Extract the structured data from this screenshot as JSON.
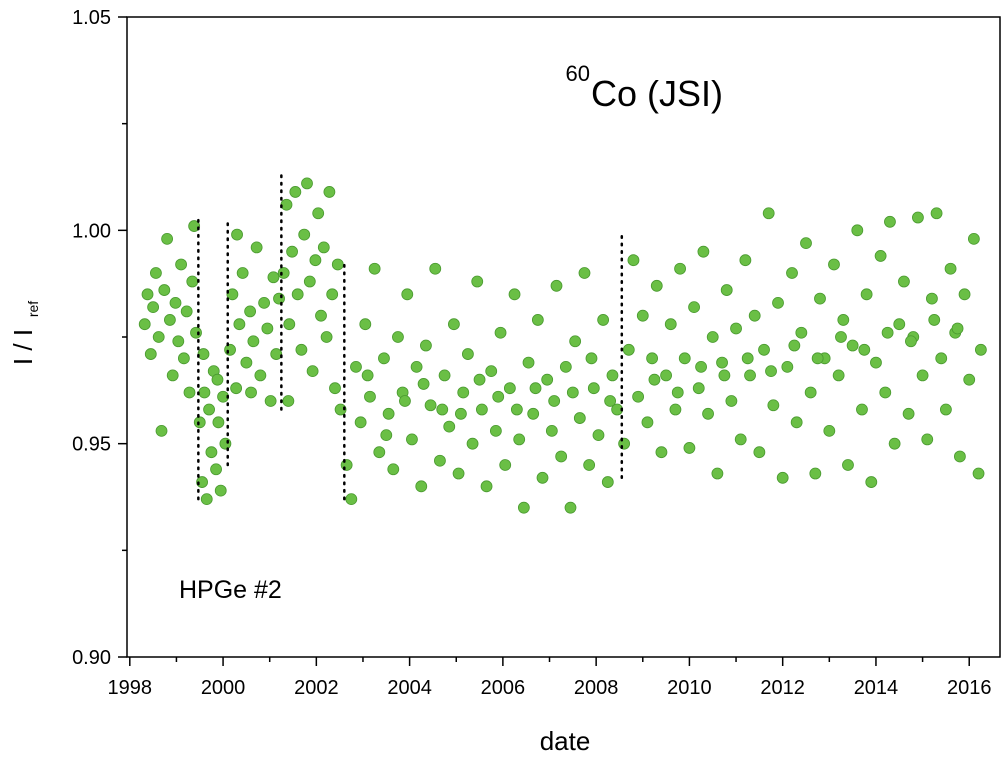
{
  "chart_data": {
    "type": "scatter",
    "title_sup": "60",
    "title": "Co (JSI)",
    "xlabel": "date",
    "ylabel": "I / I",
    "ylabel_sub": "ref",
    "annotation": "HPGe #2",
    "annotation_color": "#857a30",
    "xlim": [
      1997.94,
      2016.66
    ],
    "xticks": [
      1998,
      2000,
      2002,
      2004,
      2006,
      2008,
      2010,
      2012,
      2014,
      2016
    ],
    "xminorticks": [
      1999,
      2001,
      2003,
      2005,
      2007,
      2009,
      2011,
      2013,
      2015
    ],
    "ylim": [
      0.9,
      1.05
    ],
    "yticks": [
      {
        "value": 0.9,
        "label": "0.90"
      },
      0.95,
      {
        "value": 1.0,
        "label": "1.00"
      },
      1.05
    ],
    "yminorticks": [
      0.925,
      0.975,
      1.025
    ],
    "vlines": [
      {
        "x": 1999.47,
        "ylim": [
          0.937,
          1.003
        ]
      },
      {
        "x": 2000.1,
        "ylim": [
          0.945,
          1.003
        ]
      },
      {
        "x": 2001.25,
        "ylim": [
          0.958,
          1.014
        ]
      },
      {
        "x": 2002.6,
        "ylim": [
          0.937,
          0.993
        ]
      },
      {
        "x": 2008.55,
        "ylim": [
          0.942,
          0.999
        ]
      }
    ],
    "series": [
      {
        "color": "#6abf45",
        "edge_color": "#4a9a30",
        "x": [
          1998.32,
          1998.38,
          1998.45,
          1998.5,
          1998.56,
          1998.62,
          1998.68,
          1998.74,
          1998.8,
          1998.86,
          1998.92,
          1998.98,
          1999.04,
          1999.1,
          1999.16,
          1999.22,
          1999.28,
          1999.34,
          1999.38,
          1999.42,
          1999.5,
          1999.55,
          1999.6,
          1999.65,
          1999.7,
          1999.75,
          1999.8,
          1999.85,
          1999.9,
          1999.95,
          2000.0,
          2000.05,
          1999.58,
          1999.88,
          2000.15,
          2000.2,
          2000.28,
          2000.35,
          2000.42,
          2000.5,
          2000.58,
          2000.65,
          2000.72,
          2000.8,
          2000.88,
          2000.95,
          2001.02,
          2001.08,
          2001.14,
          2001.2,
          2000.3,
          2000.6,
          2001.3,
          2001.36,
          2001.42,
          2001.48,
          2001.55,
          2001.6,
          2001.68,
          2001.74,
          2001.8,
          2001.86,
          2001.92,
          2001.98,
          2002.04,
          2002.1,
          2002.16,
          2002.22,
          2002.28,
          2002.34,
          2002.4,
          2002.46,
          2002.52,
          2001.4,
          2002.65,
          2002.75,
          2002.85,
          2002.95,
          2003.05,
          2003.15,
          2003.25,
          2003.35,
          2003.45,
          2003.55,
          2003.65,
          2003.75,
          2003.85,
          2003.95,
          2004.05,
          2004.15,
          2004.25,
          2004.35,
          2004.45,
          2004.55,
          2004.65,
          2004.75,
          2004.85,
          2004.95,
          2005.05,
          2005.15,
          2005.25,
          2005.35,
          2005.45,
          2005.55,
          2005.65,
          2005.75,
          2005.85,
          2005.95,
          2006.05,
          2006.15,
          2006.25,
          2006.35,
          2006.45,
          2006.55,
          2006.65,
          2006.75,
          2006.85,
          2006.95,
          2007.05,
          2007.15,
          2007.25,
          2007.35,
          2007.45,
          2007.55,
          2007.65,
          2007.75,
          2007.85,
          2007.95,
          2008.05,
          2008.15,
          2008.25,
          2008.35,
          2008.45,
          2003.1,
          2003.5,
          2003.9,
          2004.3,
          2004.7,
          2005.1,
          2005.5,
          2005.9,
          2006.3,
          2006.7,
          2007.1,
          2007.5,
          2007.9,
          2008.3,
          2008.6,
          2008.7,
          2008.8,
          2008.9,
          2009.0,
          2009.1,
          2009.2,
          2009.3,
          2009.4,
          2009.5,
          2009.6,
          2009.7,
          2009.8,
          2009.9,
          2010.0,
          2010.1,
          2010.2,
          2010.3,
          2010.4,
          2010.5,
          2010.6,
          2010.7,
          2010.8,
          2010.9,
          2011.0,
          2011.1,
          2011.2,
          2011.3,
          2011.4,
          2011.5,
          2011.6,
          2011.7,
          2011.8,
          2011.9,
          2012.0,
          2012.1,
          2012.2,
          2012.3,
          2012.4,
          2012.5,
          2012.6,
          2012.7,
          2012.8,
          2012.9,
          2013.0,
          2013.1,
          2013.2,
          2013.3,
          2013.4,
          2013.5,
          2013.6,
          2013.7,
          2013.8,
          2013.9,
          2014.0,
          2014.1,
          2014.2,
          2014.3,
          2014.4,
          2014.5,
          2014.6,
          2014.7,
          2014.8,
          2014.9,
          2015.0,
          2015.1,
          2015.2,
          2015.3,
          2015.4,
          2015.5,
          2015.6,
          2015.7,
          2015.8,
          2015.9,
          2016.0,
          2016.1,
          2016.2,
          2016.25,
          2009.25,
          2009.75,
          2010.25,
          2010.75,
          2011.25,
          2011.75,
          2012.25,
          2012.75,
          2013.25,
          2013.75,
          2014.25,
          2014.75,
          2015.25,
          2015.75
        ],
        "values": [
          0.978,
          0.985,
          0.971,
          0.982,
          0.99,
          0.975,
          0.953,
          0.986,
          0.998,
          0.979,
          0.966,
          0.983,
          0.974,
          0.992,
          0.97,
          0.981,
          0.962,
          0.988,
          1.001,
          0.976,
          0.955,
          0.941,
          0.962,
          0.937,
          0.958,
          0.948,
          0.967,
          0.944,
          0.955,
          0.939,
          0.961,
          0.95,
          0.971,
          0.965,
          0.972,
          0.985,
          0.963,
          0.978,
          0.99,
          0.969,
          0.981,
          0.974,
          0.996,
          0.966,
          0.983,
          0.977,
          0.96,
          0.989,
          0.971,
          0.984,
          0.999,
          0.962,
          0.99,
          1.006,
          0.978,
          0.995,
          1.009,
          0.985,
          0.972,
          0.999,
          1.011,
          0.988,
          0.967,
          0.993,
          1.004,
          0.98,
          0.996,
          0.975,
          1.009,
          0.985,
          0.963,
          0.992,
          0.958,
          0.96,
          0.945,
          0.937,
          0.968,
          0.955,
          0.978,
          0.961,
          0.991,
          0.948,
          0.97,
          0.957,
          0.944,
          0.975,
          0.962,
          0.985,
          0.951,
          0.968,
          0.94,
          0.973,
          0.959,
          0.991,
          0.946,
          0.966,
          0.954,
          0.978,
          0.943,
          0.962,
          0.971,
          0.95,
          0.988,
          0.958,
          0.94,
          0.967,
          0.953,
          0.976,
          0.945,
          0.963,
          0.985,
          0.951,
          0.935,
          0.969,
          0.957,
          0.979,
          0.942,
          0.965,
          0.953,
          0.987,
          0.947,
          0.968,
          0.935,
          0.974,
          0.956,
          0.99,
          0.945,
          0.963,
          0.952,
          0.979,
          0.941,
          0.966,
          0.958,
          0.966,
          0.952,
          0.96,
          0.964,
          0.958,
          0.957,
          0.965,
          0.961,
          0.958,
          0.963,
          0.96,
          0.962,
          0.97,
          0.96,
          0.95,
          0.972,
          0.993,
          0.961,
          0.98,
          0.955,
          0.97,
          0.987,
          0.948,
          0.966,
          0.978,
          0.958,
          0.991,
          0.97,
          0.949,
          0.982,
          0.963,
          0.995,
          0.957,
          0.975,
          0.943,
          0.969,
          0.986,
          0.96,
          0.977,
          0.951,
          0.993,
          0.966,
          0.98,
          0.948,
          0.972,
          1.004,
          0.959,
          0.983,
          0.942,
          0.968,
          0.99,
          0.955,
          0.976,
          0.997,
          0.962,
          0.943,
          0.984,
          0.97,
          0.953,
          0.992,
          0.966,
          0.979,
          0.945,
          0.973,
          1.0,
          0.958,
          0.985,
          0.941,
          0.969,
          0.994,
          0.962,
          1.002,
          0.95,
          0.978,
          0.988,
          0.957,
          0.975,
          1.003,
          0.966,
          0.951,
          0.984,
          1.004,
          0.97,
          0.958,
          0.991,
          0.976,
          0.947,
          0.985,
          0.965,
          0.998,
          0.943,
          0.972,
          0.965,
          0.962,
          0.968,
          0.966,
          0.97,
          0.967,
          0.973,
          0.97,
          0.975,
          0.972,
          0.976,
          0.974,
          0.979,
          0.977
        ]
      }
    ]
  }
}
